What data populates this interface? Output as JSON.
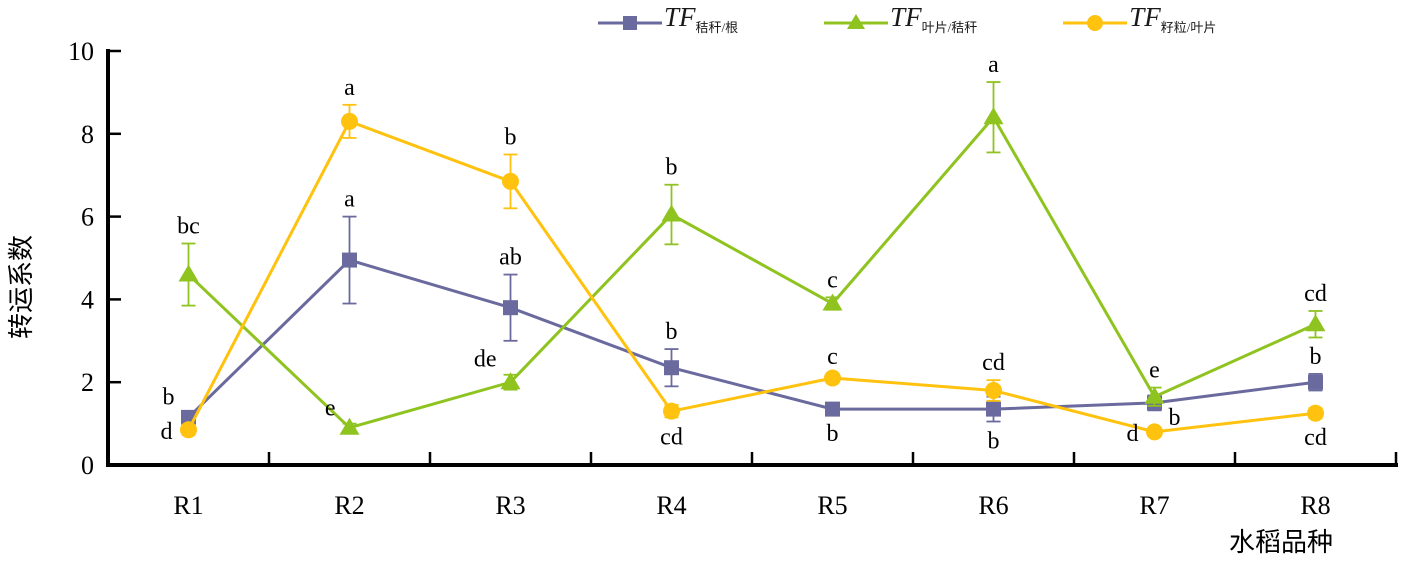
{
  "page": {
    "background": "#ffffff"
  },
  "legend": {
    "items": [
      {
        "prefix": "TF",
        "sub": "秸秆/根",
        "marker": "square",
        "color": "#6a6a9e"
      },
      {
        "prefix": "TF",
        "sub": "叶片/秸秆",
        "marker": "triangle",
        "color": "#8fc31f"
      },
      {
        "prefix": "TF",
        "sub": "籽粒/叶片",
        "marker": "circle",
        "color": "#ffc20e"
      }
    ]
  },
  "chart_data": {
    "type": "line",
    "title": "",
    "xlabel": "水稻品种",
    "ylabel": "转运系数",
    "ylim": [
      0,
      10
    ],
    "yticks": [
      0,
      2,
      4,
      6,
      8,
      10
    ],
    "categories": [
      "R1",
      "R2",
      "R3",
      "R4",
      "R5",
      "R6",
      "R7",
      "R8"
    ],
    "grid": false,
    "legend_position": "top-center",
    "axis_color": "#000000",
    "series": [
      {
        "name": "TF秸秆/根",
        "marker": "square",
        "color": "#6a6a9e",
        "values": [
          1.15,
          4.95,
          3.8,
          2.35,
          1.35,
          1.35,
          1.5,
          2.0
        ],
        "errors": [
          0.12,
          1.05,
          0.8,
          0.45,
          0.12,
          0.3,
          0.18,
          0.2
        ],
        "sig_labels": [
          "b",
          "a",
          "ab",
          "b",
          "b",
          "b",
          "b",
          "b"
        ],
        "label_pos": [
          "left-above",
          "above",
          "above",
          "above",
          "below",
          "below",
          "right",
          "above"
        ]
      },
      {
        "name": "TF叶片/秸秆",
        "marker": "triangle",
        "color": "#8fc31f",
        "values": [
          4.6,
          0.9,
          2.0,
          6.05,
          3.9,
          8.4,
          1.65,
          3.4
        ],
        "errors": [
          0.75,
          0.1,
          0.18,
          0.72,
          0.15,
          0.85,
          0.22,
          0.32
        ],
        "sig_labels": [
          "bc",
          "e",
          "de",
          "b",
          "c",
          "a",
          "e",
          "cd"
        ],
        "label_pos": [
          "above",
          "left-above",
          "left-above",
          "above",
          "above",
          "above",
          "above",
          "above"
        ]
      },
      {
        "name": "TF籽粒/叶片",
        "marker": "circle",
        "color": "#ffc20e",
        "values": [
          0.85,
          8.3,
          6.85,
          1.3,
          2.1,
          1.8,
          0.8,
          1.25
        ],
        "errors": [
          0.12,
          0.4,
          0.65,
          0.15,
          0.1,
          0.25,
          0.1,
          0.12
        ],
        "sig_labels": [
          "d",
          "a",
          "b",
          "cd",
          "c",
          "cd",
          "d",
          "cd"
        ],
        "label_pos": [
          "left",
          "above",
          "above",
          "below",
          "above",
          "above",
          "left",
          "below"
        ]
      }
    ]
  }
}
